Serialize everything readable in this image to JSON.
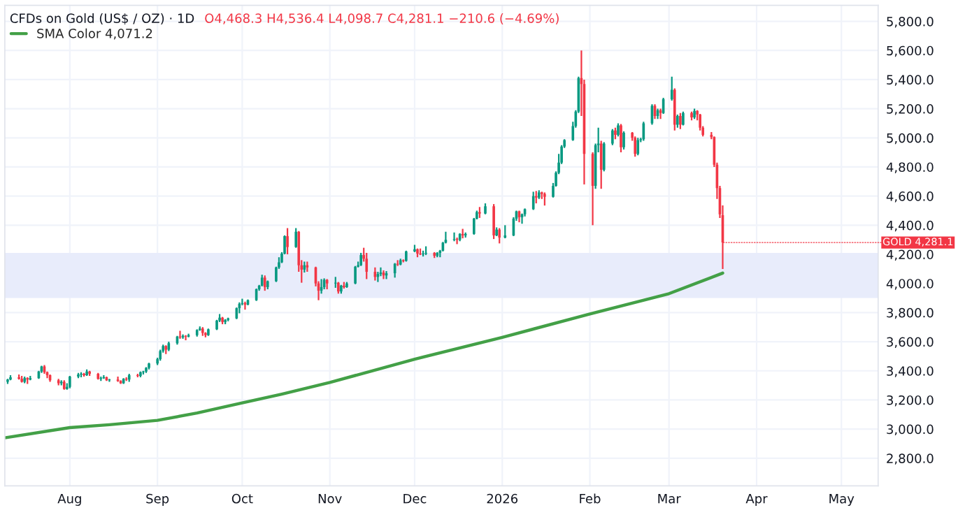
{
  "chart_data": {
    "type": "candlestick",
    "title": "CFDs on Gold (US$ / OZ) · 1D",
    "subtitle": "O4,468.3 H4,536.4 L4,098.7 C4,281.1 −210.6 (−4.69%)",
    "x": [
      "2025-07-10",
      "2025-07-11",
      "2025-07-14",
      "2025-07-15",
      "2025-07-16",
      "2025-07-17",
      "2025-07-18",
      "2025-07-21",
      "2025-07-22",
      "2025-07-23",
      "2025-07-24",
      "2025-07-25",
      "2025-07-28",
      "2025-07-29",
      "2025-07-30",
      "2025-07-31",
      "2025-08-01",
      "2025-08-04",
      "2025-08-05",
      "2025-08-06",
      "2025-08-07",
      "2025-08-08",
      "2025-08-11",
      "2025-08-12",
      "2025-08-13",
      "2025-08-14",
      "2025-08-15",
      "2025-08-18",
      "2025-08-19",
      "2025-08-20",
      "2025-08-21",
      "2025-08-22",
      "2025-08-25",
      "2025-08-26",
      "2025-08-27",
      "2025-08-28",
      "2025-08-29",
      "2025-09-01",
      "2025-09-02",
      "2025-09-03",
      "2025-09-04",
      "2025-09-05",
      "2025-09-08",
      "2025-09-09",
      "2025-09-10",
      "2025-09-11",
      "2025-09-12",
      "2025-09-15",
      "2025-09-16",
      "2025-09-17",
      "2025-09-18",
      "2025-09-19",
      "2025-09-22",
      "2025-09-23",
      "2025-09-24",
      "2025-09-25",
      "2025-09-26",
      "2025-09-29",
      "2025-09-30",
      "2025-10-01",
      "2025-10-02",
      "2025-10-03",
      "2025-10-06",
      "2025-10-07",
      "2025-10-08",
      "2025-10-09",
      "2025-10-10",
      "2025-10-13",
      "2025-10-14",
      "2025-10-15",
      "2025-10-16",
      "2025-10-17",
      "2025-10-20",
      "2025-10-21",
      "2025-10-22",
      "2025-10-23",
      "2025-10-24",
      "2025-10-27",
      "2025-10-28",
      "2025-10-29",
      "2025-10-30",
      "2025-10-31",
      "2025-11-03",
      "2025-11-04",
      "2025-11-05",
      "2025-11-06",
      "2025-11-07",
      "2025-11-10",
      "2025-11-11",
      "2025-11-12",
      "2025-11-13",
      "2025-11-14",
      "2025-11-17",
      "2025-11-18",
      "2025-11-19",
      "2025-11-20",
      "2025-11-21",
      "2025-11-24",
      "2025-11-25",
      "2025-11-26",
      "2025-11-27",
      "2025-11-28",
      "2025-12-01",
      "2025-12-02",
      "2025-12-03",
      "2025-12-04",
      "2025-12-05",
      "2025-12-08",
      "2025-12-09",
      "2025-12-10",
      "2025-12-11",
      "2025-12-12",
      "2025-12-15",
      "2025-12-16",
      "2025-12-17",
      "2025-12-18",
      "2025-12-19",
      "2025-12-22",
      "2025-12-23",
      "2025-12-24",
      "2025-12-26",
      "2025-12-29",
      "2025-12-30",
      "2025-12-31",
      "2026-01-02",
      "2026-01-05",
      "2026-01-06",
      "2026-01-07",
      "2026-01-08",
      "2026-01-09",
      "2026-01-12",
      "2026-01-13",
      "2026-01-14",
      "2026-01-15",
      "2026-01-16",
      "2026-01-19",
      "2026-01-20",
      "2026-01-21",
      "2026-01-22",
      "2026-01-23",
      "2026-01-26",
      "2026-01-27",
      "2026-01-28",
      "2026-01-29",
      "2026-01-30",
      "2026-02-02",
      "2026-02-03",
      "2026-02-04",
      "2026-02-05",
      "2026-02-06",
      "2026-02-09",
      "2026-02-10",
      "2026-02-11",
      "2026-02-12",
      "2026-02-13",
      "2026-02-16",
      "2026-02-17",
      "2026-02-18",
      "2026-02-19",
      "2026-02-20",
      "2026-02-23",
      "2026-02-24",
      "2026-02-25",
      "2026-02-26",
      "2026-02-27",
      "2026-03-02",
      "2026-03-03",
      "2026-03-04",
      "2026-03-05",
      "2026-03-06",
      "2026-03-09",
      "2026-03-10",
      "2026-03-11",
      "2026-03-12",
      "2026-03-13",
      "2026-03-16",
      "2026-03-17",
      "2026-03-18",
      "2026-03-19",
      "2026-03-20"
    ],
    "ohlc": [
      [
        3325,
        3345,
        3310,
        3340
      ],
      [
        3340,
        3370,
        3335,
        3355
      ],
      [
        3355,
        3375,
        3340,
        3345
      ],
      [
        3345,
        3365,
        3320,
        3325
      ],
      [
        3325,
        3360,
        3315,
        3350
      ],
      [
        3350,
        3355,
        3310,
        3340
      ],
      [
        3340,
        3365,
        3335,
        3350
      ],
      [
        3350,
        3400,
        3345,
        3395
      ],
      [
        3395,
        3435,
        3385,
        3430
      ],
      [
        3430,
        3440,
        3380,
        3390
      ],
      [
        3390,
        3395,
        3350,
        3370
      ],
      [
        3370,
        3375,
        3325,
        3335
      ],
      [
        3335,
        3345,
        3300,
        3315
      ],
      [
        3315,
        3335,
        3300,
        3325
      ],
      [
        3325,
        3335,
        3270,
        3275
      ],
      [
        3275,
        3315,
        3270,
        3290
      ],
      [
        3290,
        3365,
        3280,
        3360
      ],
      [
        3360,
        3385,
        3350,
        3375
      ],
      [
        3375,
        3390,
        3355,
        3380
      ],
      [
        3380,
        3385,
        3360,
        3370
      ],
      [
        3370,
        3410,
        3365,
        3395
      ],
      [
        3395,
        3400,
        3365,
        3380
      ],
      [
        3380,
        3385,
        3340,
        3345
      ],
      [
        3345,
        3360,
        3330,
        3350
      ],
      [
        3350,
        3370,
        3345,
        3355
      ],
      [
        3355,
        3360,
        3330,
        3335
      ],
      [
        3335,
        3345,
        3325,
        3340
      ],
      [
        3340,
        3360,
        3325,
        3330
      ],
      [
        3330,
        3335,
        3310,
        3315
      ],
      [
        3315,
        3350,
        3310,
        3345
      ],
      [
        3345,
        3355,
        3330,
        3340
      ],
      [
        3340,
        3380,
        3325,
        3370
      ],
      [
        3370,
        3380,
        3355,
        3365
      ],
      [
        3365,
        3395,
        3355,
        3390
      ],
      [
        3390,
        3400,
        3375,
        3395
      ],
      [
        3395,
        3425,
        3385,
        3420
      ],
      [
        3420,
        3455,
        3410,
        3450
      ],
      [
        3450,
        3490,
        3440,
        3480
      ],
      [
        3480,
        3545,
        3470,
        3535
      ],
      [
        3535,
        3580,
        3525,
        3570
      ],
      [
        3570,
        3575,
        3515,
        3545
      ],
      [
        3545,
        3600,
        3535,
        3590
      ],
      [
        3590,
        3640,
        3580,
        3635
      ],
      [
        3635,
        3675,
        3620,
        3630
      ],
      [
        3630,
        3650,
        3620,
        3640
      ],
      [
        3640,
        3645,
        3610,
        3635
      ],
      [
        3635,
        3655,
        3630,
        3645
      ],
      [
        3645,
        3685,
        3635,
        3680
      ],
      [
        3680,
        3705,
        3675,
        3690
      ],
      [
        3690,
        3700,
        3640,
        3660
      ],
      [
        3660,
        3665,
        3630,
        3645
      ],
      [
        3645,
        3690,
        3640,
        3685
      ],
      [
        3685,
        3750,
        3680,
        3745
      ],
      [
        3745,
        3790,
        3735,
        3765
      ],
      [
        3765,
        3770,
        3720,
        3735
      ],
      [
        3735,
        3755,
        3720,
        3750
      ],
      [
        3750,
        3765,
        3740,
        3760
      ],
      [
        3760,
        3835,
        3755,
        3830
      ],
      [
        3830,
        3870,
        3795,
        3860
      ],
      [
        3860,
        3895,
        3850,
        3865
      ],
      [
        3865,
        3875,
        3820,
        3855
      ],
      [
        3855,
        3890,
        3850,
        3885
      ],
      [
        3885,
        3965,
        3880,
        3960
      ],
      [
        3960,
        3990,
        3950,
        3985
      ],
      [
        3985,
        4060,
        3980,
        4040
      ],
      [
        4040,
        4055,
        3950,
        3975
      ],
      [
        3975,
        4020,
        3960,
        4015
      ],
      [
        4015,
        4115,
        4010,
        4110
      ],
      [
        4110,
        4180,
        4100,
        4145
      ],
      [
        4145,
        4215,
        4140,
        4205
      ],
      [
        4205,
        4330,
        4200,
        4325
      ],
      [
        4325,
        4380,
        4200,
        4250
      ],
      [
        4250,
        4380,
        4245,
        4355
      ],
      [
        4355,
        4360,
        4080,
        4125
      ],
      [
        4125,
        4160,
        4005,
        4095
      ],
      [
        4095,
        4150,
        4075,
        4125
      ],
      [
        4125,
        4150,
        4080,
        4110
      ],
      [
        4110,
        4115,
        3980,
        4000
      ],
      [
        4000,
        4015,
        3885,
        3950
      ],
      [
        3950,
        4030,
        3930,
        3975
      ],
      [
        3975,
        4035,
        3960,
        4025
      ],
      [
        4025,
        4030,
        3960,
        4000
      ],
      [
        4000,
        4045,
        3970,
        4005
      ],
      [
        4005,
        4010,
        3930,
        3945
      ],
      [
        3945,
        3990,
        3930,
        3985
      ],
      [
        3985,
        4010,
        3965,
        3975
      ],
      [
        3975,
        4010,
        3970,
        4000
      ],
      [
        4000,
        4120,
        3995,
        4115
      ],
      [
        4115,
        4150,
        4110,
        4125
      ],
      [
        4125,
        4210,
        4120,
        4195
      ],
      [
        4195,
        4245,
        4150,
        4170
      ],
      [
        4170,
        4210,
        4030,
        4080
      ],
      [
        4080,
        4110,
        4020,
        4045
      ],
      [
        4045,
        4080,
        4010,
        4065
      ],
      [
        4065,
        4110,
        4050,
        4075
      ],
      [
        4075,
        4090,
        4030,
        4055
      ],
      [
        4055,
        4085,
        4030,
        4070
      ],
      [
        4070,
        4140,
        4040,
        4135
      ],
      [
        4135,
        4160,
        4120,
        4130
      ],
      [
        4130,
        4170,
        4125,
        4160
      ],
      [
        4160,
        4165,
        4145,
        4155
      ],
      [
        4155,
        4225,
        4150,
        4220
      ],
      [
        4220,
        4265,
        4215,
        4235
      ],
      [
        4235,
        4240,
        4180,
        4205
      ],
      [
        4205,
        4240,
        4195,
        4200
      ],
      [
        4200,
        4225,
        4185,
        4205
      ],
      [
        4205,
        4255,
        4195,
        4210
      ],
      [
        4210,
        4215,
        4175,
        4190
      ],
      [
        4190,
        4215,
        4180,
        4210
      ],
      [
        4210,
        4230,
        4180,
        4225
      ],
      [
        4225,
        4285,
        4220,
        4280
      ],
      [
        4280,
        4355,
        4275,
        4300
      ],
      [
        4300,
        4350,
        4290,
        4305
      ],
      [
        4305,
        4315,
        4270,
        4300
      ],
      [
        4300,
        4345,
        4290,
        4340
      ],
      [
        4340,
        4375,
        4310,
        4330
      ],
      [
        4330,
        4350,
        4315,
        4340
      ],
      [
        4340,
        4450,
        4335,
        4445
      ],
      [
        4445,
        4500,
        4440,
        4490
      ],
      [
        4490,
        4525,
        4450,
        4480
      ],
      [
        4480,
        4550,
        4475,
        4530
      ],
      [
        4530,
        4545,
        4305,
        4330
      ],
      [
        4330,
        4385,
        4325,
        4370
      ],
      [
        4370,
        4380,
        4275,
        4315
      ],
      [
        4315,
        4400,
        4310,
        4330
      ],
      [
        4330,
        4455,
        4325,
        4445
      ],
      [
        4445,
        4500,
        4430,
        4495
      ],
      [
        4495,
        4500,
        4420,
        4455
      ],
      [
        4455,
        4480,
        4410,
        4475
      ],
      [
        4475,
        4515,
        4460,
        4510
      ],
      [
        4510,
        4630,
        4505,
        4600
      ],
      [
        4600,
        4635,
        4550,
        4590
      ],
      [
        4590,
        4640,
        4580,
        4625
      ],
      [
        4625,
        4630,
        4580,
        4615
      ],
      [
        4615,
        4625,
        4535,
        4595
      ],
      [
        4595,
        4690,
        4590,
        4670
      ],
      [
        4670,
        4770,
        4665,
        4760
      ],
      [
        4760,
        4890,
        4750,
        4830
      ],
      [
        4830,
        4950,
        4820,
        4940
      ],
      [
        4940,
        4990,
        4930,
        4985
      ],
      [
        4985,
        5110,
        4980,
        5080
      ],
      [
        5080,
        5190,
        5070,
        5180
      ],
      [
        5180,
        5420,
        5170,
        5410
      ],
      [
        5410,
        5600,
        5150,
        5370
      ],
      [
        5370,
        5400,
        4680,
        4890
      ],
      [
        4890,
        4900,
        4400,
        4670
      ],
      [
        4670,
        4960,
        4650,
        4950
      ],
      [
        4950,
        5070,
        4900,
        4960
      ],
      [
        4960,
        4980,
        4650,
        4780
      ],
      [
        4780,
        4970,
        4770,
        4960
      ],
      [
        4960,
        5060,
        4950,
        5050
      ],
      [
        5050,
        5070,
        4990,
        5020
      ],
      [
        5020,
        5100,
        5010,
        5085
      ],
      [
        5085,
        5095,
        4900,
        4935
      ],
      [
        4935,
        5045,
        4920,
        5035
      ],
      [
        5035,
        5040,
        4980,
        5000
      ],
      [
        5000,
        5010,
        4870,
        4890
      ],
      [
        4890,
        5000,
        4880,
        4985
      ],
      [
        4985,
        5000,
        4970,
        4990
      ],
      [
        4990,
        5110,
        4980,
        5100
      ],
      [
        5100,
        5230,
        5090,
        5220
      ],
      [
        5220,
        5230,
        5130,
        5150
      ],
      [
        5150,
        5200,
        5130,
        5190
      ],
      [
        5190,
        5200,
        5130,
        5170
      ],
      [
        5170,
        5275,
        5165,
        5265
      ],
      [
        5265,
        5420,
        5255,
        5330
      ],
      [
        5330,
        5340,
        5050,
        5090
      ],
      [
        5090,
        5160,
        5070,
        5150
      ],
      [
        5150,
        5170,
        5060,
        5090
      ],
      [
        5090,
        5180,
        5085,
        5170
      ],
      [
        5170,
        5180,
        5120,
        5140
      ],
      [
        5140,
        5200,
        5130,
        5185
      ],
      [
        5185,
        5190,
        5120,
        5160
      ],
      [
        5160,
        5165,
        5050,
        5070
      ],
      [
        5070,
        5080,
        5010,
        5020
      ],
      [
        5020,
        5040,
        4990,
        5005
      ],
      [
        5005,
        5010,
        4800,
        4815
      ],
      [
        4815,
        4830,
        4580,
        4655
      ],
      [
        4655,
        4670,
        4450,
        4475
      ],
      [
        4468.3,
        4536.4,
        4098.7,
        4281.1
      ]
    ],
    "series": [
      {
        "name": "SMA Color 4,071.2",
        "type": "line",
        "color": "#43a047",
        "x": [
          "2025-07-09",
          "2025-08-01",
          "2025-08-15",
          "2025-09-01",
          "2025-09-15",
          "2025-10-01",
          "2025-10-15",
          "2025-11-01",
          "2025-12-01",
          "2026-01-01",
          "2026-02-01",
          "2026-03-01",
          "2026-03-20"
        ],
        "values": [
          2940,
          3010,
          3030,
          3060,
          3110,
          3180,
          3240,
          3320,
          3480,
          3630,
          3790,
          3930,
          4071.2
        ]
      }
    ],
    "bands": [
      {
        "axis": "y",
        "from": 3900,
        "to": 4210,
        "color": "#e8ecfb"
      }
    ],
    "annotations": [
      {
        "text": "GOLD 4,281.1",
        "x": "2026-03-20",
        "y": 4281.1
      }
    ],
    "xlim": [
      "2025-07-09",
      "2026-05-14"
    ],
    "xticks": [
      {
        "value": "2025-08-01",
        "label": "Aug"
      },
      {
        "value": "2025-09-01",
        "label": "Sep"
      },
      {
        "value": "2025-10-01",
        "label": "Oct"
      },
      {
        "value": "2025-11-01",
        "label": "Nov"
      },
      {
        "value": "2025-12-01",
        "label": "Dec"
      },
      {
        "value": "2026-01-01",
        "label": "2026"
      },
      {
        "value": "2026-02-01",
        "label": "Feb"
      },
      {
        "value": "2026-03-01",
        "label": "Mar"
      },
      {
        "value": "2026-04-01",
        "label": "Apr"
      },
      {
        "value": "2026-05-01",
        "label": "May"
      }
    ],
    "ylim": [
      2610,
      5910
    ],
    "yticks": [
      {
        "value": 2800,
        "label": "2,800.0"
      },
      {
        "value": 3000,
        "label": "3,000.0"
      },
      {
        "value": 3200,
        "label": "3,200.0"
      },
      {
        "value": 3400,
        "label": "3,400.0"
      },
      {
        "value": 3600,
        "label": "3,600.0"
      },
      {
        "value": 3800,
        "label": "3,800.0"
      },
      {
        "value": 4000,
        "label": "4,000.0"
      },
      {
        "value": 4200,
        "label": "4,200.0"
      },
      {
        "value": 4400,
        "label": "4,400.0"
      },
      {
        "value": 4600,
        "label": "4,600.0"
      },
      {
        "value": 4800,
        "label": "4,800.0"
      },
      {
        "value": 5000,
        "label": "5,000.0"
      },
      {
        "value": 5200,
        "label": "5,200.0"
      },
      {
        "value": 5400,
        "label": "5,400.0"
      },
      {
        "value": 5600,
        "label": "5,600.0"
      },
      {
        "value": 5800,
        "label": "5,800.0"
      }
    ],
    "grid": true,
    "legend": "top left"
  }
}
